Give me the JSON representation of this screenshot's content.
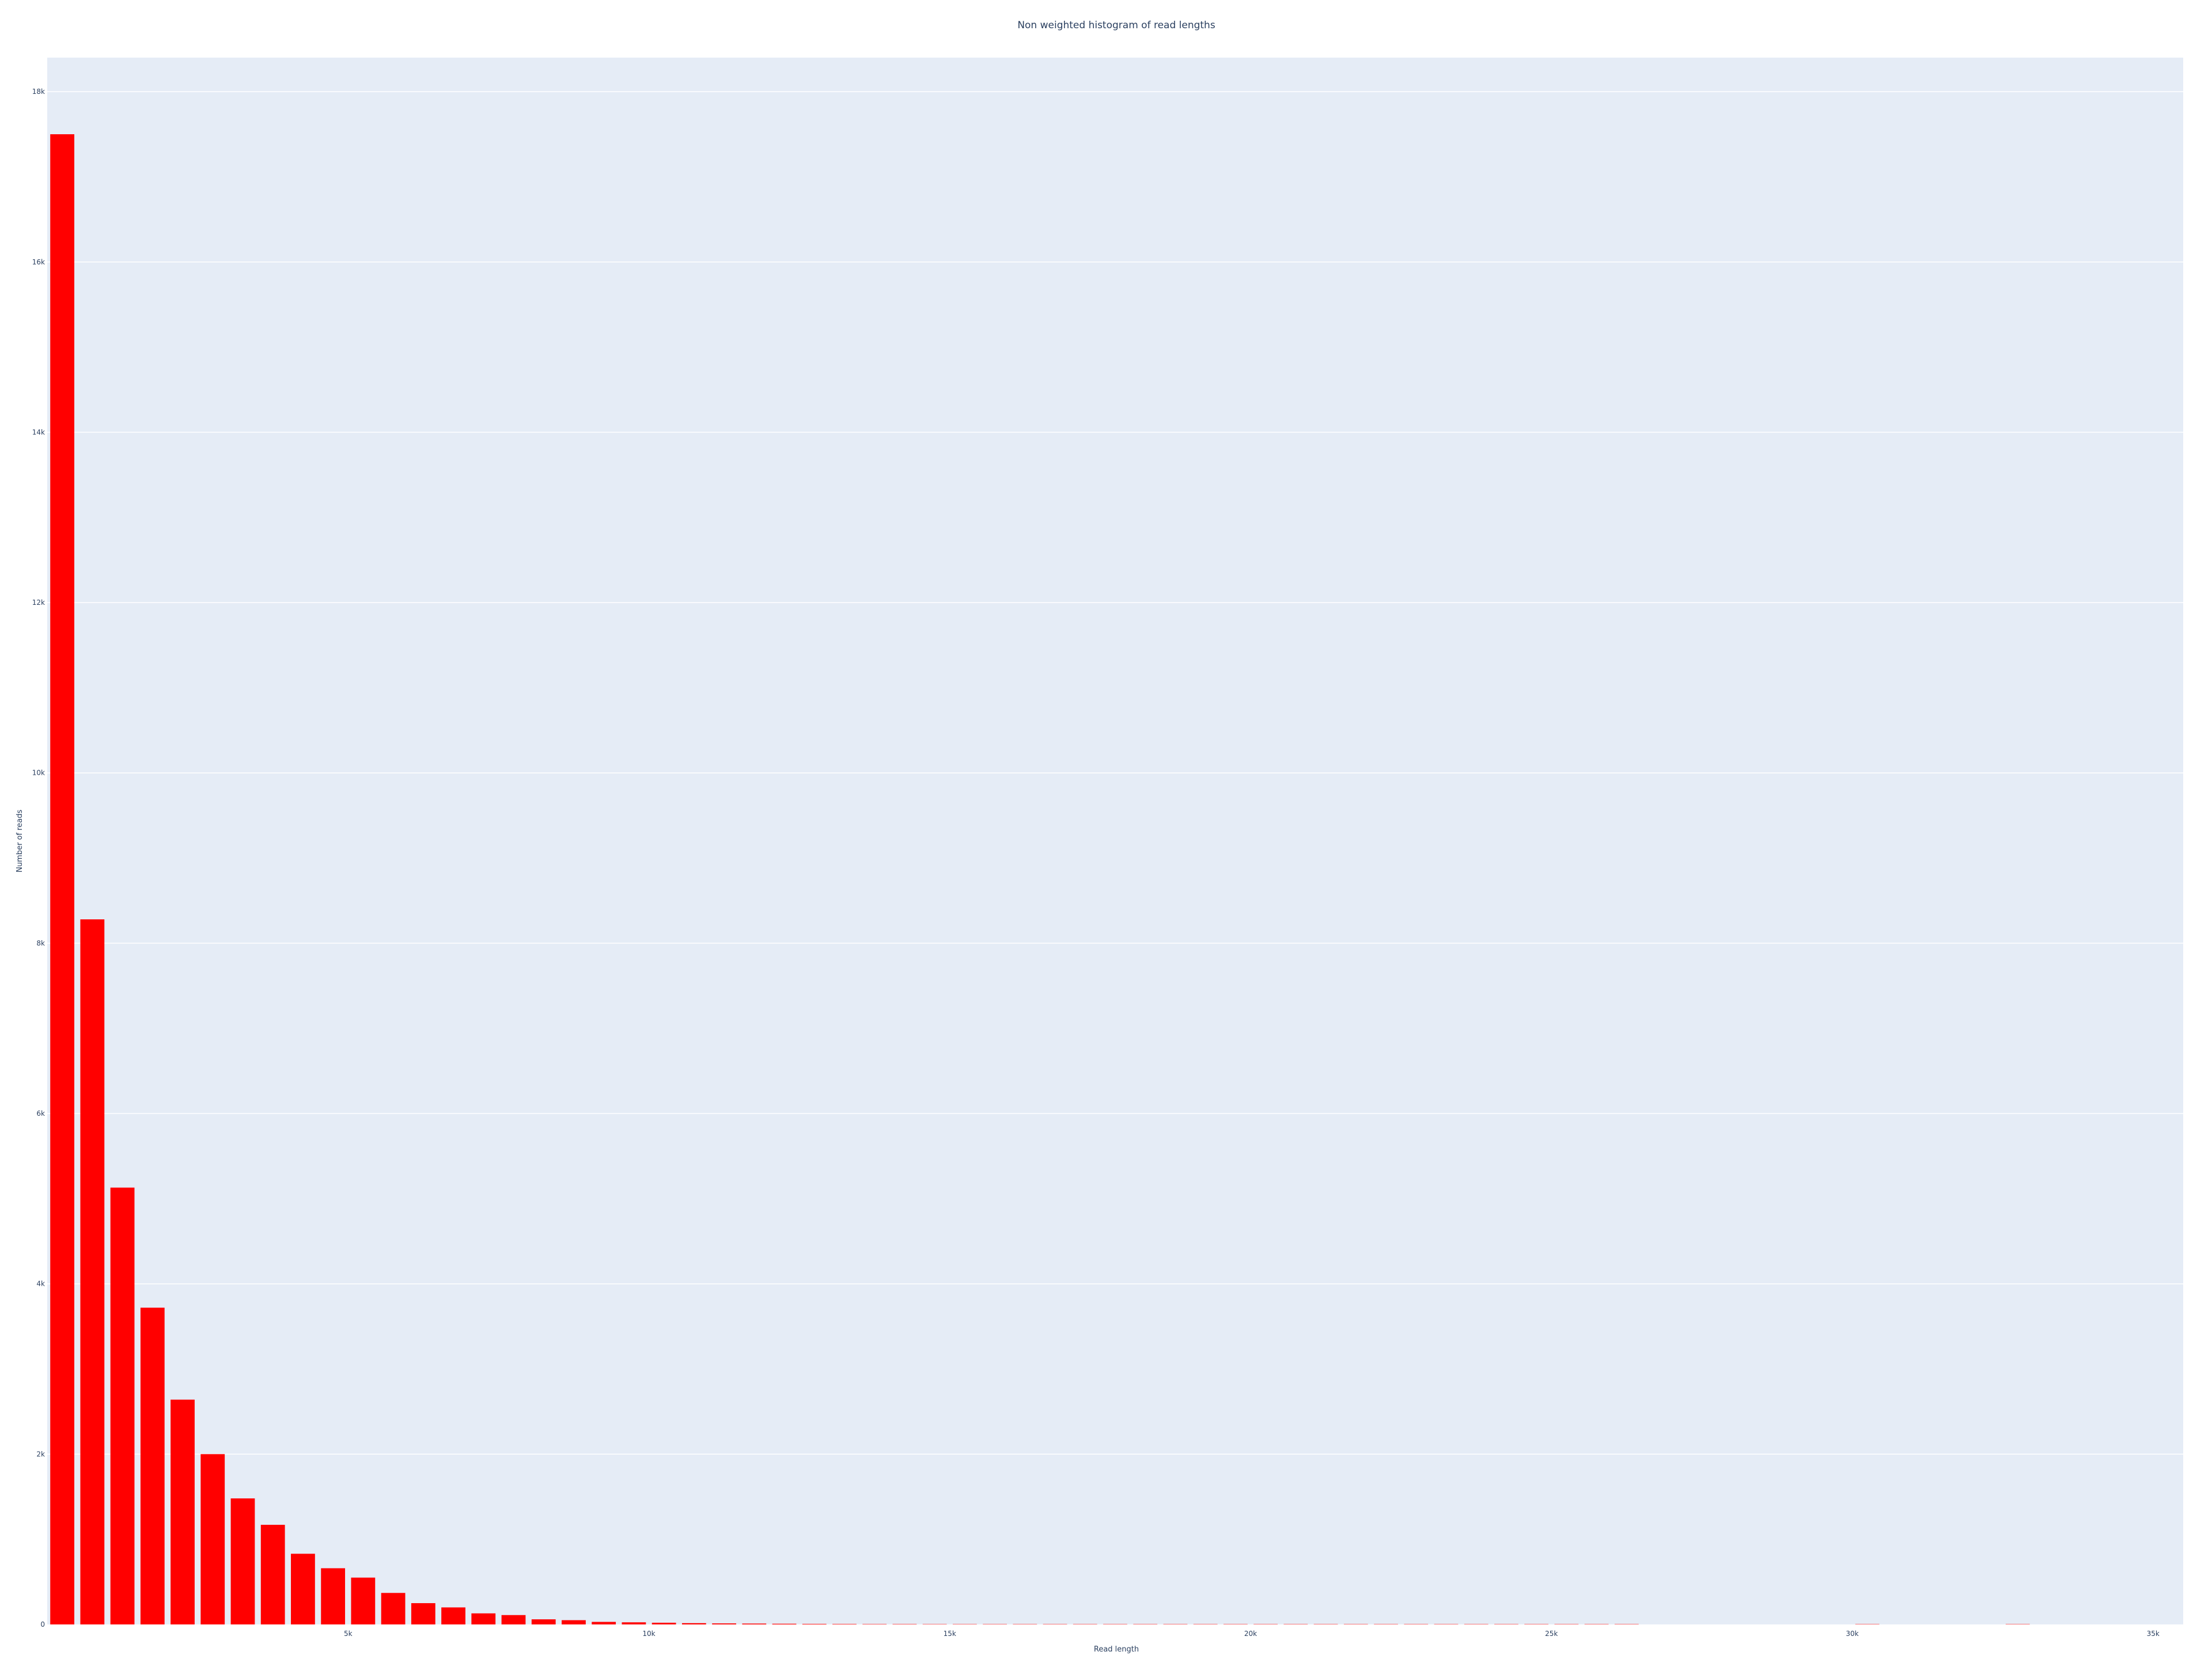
{
  "chart_data": {
    "type": "bar",
    "title": "Non weighted histogram of read lengths",
    "xlabel": "Read length",
    "ylabel": "Number of reads",
    "xlim": [
      0,
      35500
    ],
    "ylim": [
      0,
      18400
    ],
    "bin_width": 500,
    "x_ticks": [
      {
        "value": 5000,
        "label": "5k"
      },
      {
        "value": 10000,
        "label": "10k"
      },
      {
        "value": 15000,
        "label": "15k"
      },
      {
        "value": 20000,
        "label": "20k"
      },
      {
        "value": 25000,
        "label": "25k"
      },
      {
        "value": 30000,
        "label": "30k"
      },
      {
        "value": 35000,
        "label": "35k"
      }
    ],
    "y_ticks": [
      {
        "value": 0,
        "label": "0"
      },
      {
        "value": 2000,
        "label": "2k"
      },
      {
        "value": 4000,
        "label": "4k"
      },
      {
        "value": 6000,
        "label": "6k"
      },
      {
        "value": 8000,
        "label": "8k"
      },
      {
        "value": 10000,
        "label": "10k"
      },
      {
        "value": 12000,
        "label": "12k"
      },
      {
        "value": 14000,
        "label": "14k"
      },
      {
        "value": 16000,
        "label": "16k"
      },
      {
        "value": 18000,
        "label": "18k"
      }
    ],
    "x": [
      250,
      750,
      1250,
      1750,
      2250,
      2750,
      3250,
      3750,
      4250,
      4750,
      5250,
      5750,
      6250,
      6750,
      7250,
      7750,
      8250,
      8750,
      9250,
      9750,
      10250,
      10750,
      11250,
      11750,
      12250,
      12750,
      13250,
      13750,
      14250,
      14750,
      15250,
      15750,
      16250,
      16750,
      17250,
      17750,
      18250,
      18750,
      19250,
      19750,
      20250,
      20750,
      21250,
      21750,
      22250,
      22750,
      23250,
      23750,
      24250,
      24750,
      25250,
      25750,
      26250,
      30250,
      32750
    ],
    "values": [
      17500,
      8280,
      5130,
      3720,
      2640,
      2000,
      1480,
      1170,
      830,
      660,
      550,
      370,
      250,
      200,
      130,
      110,
      60,
      50,
      30,
      25,
      20,
      15,
      12,
      10,
      8,
      6,
      5,
      4,
      4,
      3,
      3,
      2,
      2,
      2,
      2,
      2,
      2,
      1,
      1,
      1,
      1,
      1,
      1,
      1,
      1,
      1,
      1,
      1,
      1,
      1,
      1,
      1,
      1,
      1,
      1
    ],
    "grid": true,
    "legend": "none",
    "colors": {
      "bar": "#ff0000",
      "plot_bg": "#e5ecf6",
      "grid": "#ffffff",
      "text": "#2a3f5f"
    }
  }
}
